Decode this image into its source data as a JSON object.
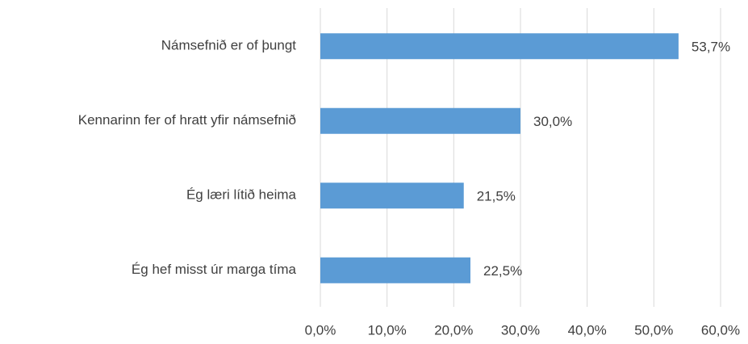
{
  "chart_data": {
    "type": "bar",
    "orientation": "horizontal",
    "categories": [
      "Námsefnið er of þungt",
      "Kennarinn fer of hratt yfir námsefnið",
      "Ég læri lítið heima",
      "Ég hef misst úr marga tíma"
    ],
    "values": [
      53.7,
      30.0,
      21.5,
      22.5
    ],
    "value_labels": [
      "53,7%",
      "30,0%",
      "21,5%",
      "22,5%"
    ],
    "color": "#5b9bd5",
    "xlim": [
      0,
      60
    ],
    "xticks": [
      {
        "value": 0,
        "label": "0,0%"
      },
      {
        "value": 10,
        "label": "10,0%"
      },
      {
        "value": 20,
        "label": "20,0%"
      },
      {
        "value": 30,
        "label": "30,0%"
      },
      {
        "value": 40,
        "label": "40,0%"
      },
      {
        "value": 50,
        "label": "50,0%"
      },
      {
        "value": 60,
        "label": "60,0%"
      }
    ],
    "grid": true
  }
}
